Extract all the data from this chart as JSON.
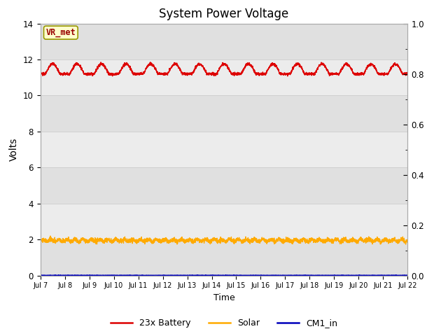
{
  "title": "System Power Voltage",
  "xlabel": "Time",
  "ylabel": "Volts",
  "xlim_start": 0,
  "xlim_end": 15,
  "ylim_left": [
    0,
    14
  ],
  "ylim_right": [
    0.0,
    1.0
  ],
  "x_tick_labels": [
    "Jul 7",
    "Jul 8",
    "Jul 9",
    "Jul 10",
    "Jul 11",
    "Jul 12",
    "Jul 13",
    "Jul 14",
    "Jul 15",
    "Jul 16",
    "Jul 17",
    "Jul 18",
    "Jul 19",
    "Jul 20",
    "Jul 21",
    "Jul 22"
  ],
  "legend_labels": [
    "23x Battery",
    "Solar",
    "CM1_in"
  ],
  "legend_colors": [
    "#dd0000",
    "#ffaa00",
    "#0000bb"
  ],
  "annotation_text": "VR_met",
  "annotation_bg": "#ffffcc",
  "annotation_border": "#999900",
  "annotation_text_color": "#990000",
  "bg_color_dark": "#e0e0e0",
  "bg_color_light": "#ececec",
  "band_edges": [
    0,
    2,
    4,
    6,
    8,
    10,
    12,
    14
  ],
  "solar_value": 1.95,
  "cm1_value": 0.01,
  "total_days": 15,
  "n_peaks": 15,
  "battery_base": 11.2,
  "battery_amplitude": 0.55,
  "figsize": [
    6.4,
    4.8
  ],
  "dpi": 100
}
